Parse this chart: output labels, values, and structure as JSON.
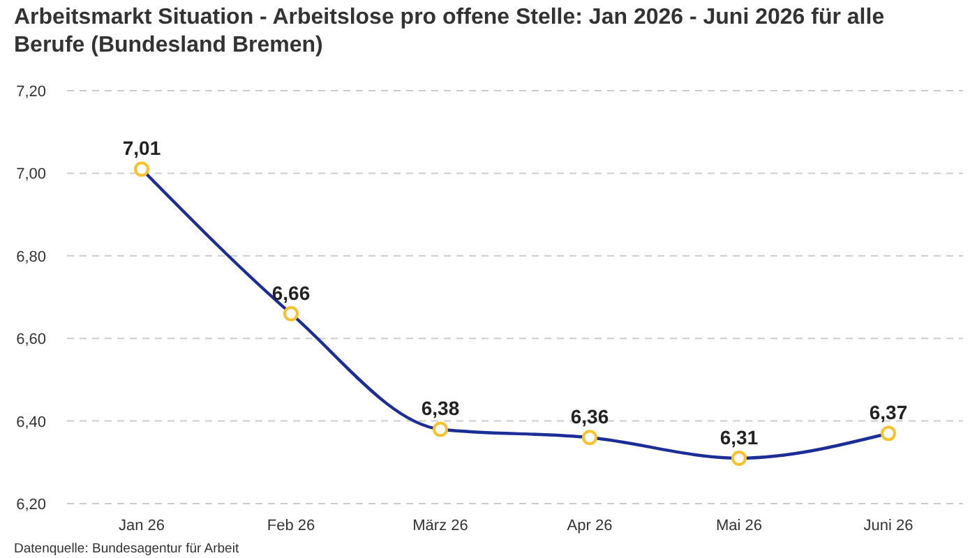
{
  "chart_data": {
    "type": "line",
    "title": "Arbeitsmarkt Situation - Arbeitslose pro offene Stelle: Jan 2026 - Juni 2026 für alle Berufe (Bundesland Bremen)",
    "categories": [
      "Jan 26",
      "Feb 26",
      "März 26",
      "Apr 26",
      "Mai 26",
      "Juni 26"
    ],
    "series": [
      {
        "color": "#1c2e96",
        "values": [
          7.01,
          6.66,
          6.38,
          6.36,
          6.31,
          6.37
        ],
        "value_labels": [
          "7,01",
          "6,66",
          "6,38",
          "6,36",
          "6,31",
          "6,37"
        ]
      }
    ],
    "ylim": [
      6.2,
      7.2
    ],
    "yticks": [
      {
        "value": 6.2,
        "label": "6,20"
      },
      {
        "value": 6.4,
        "label": "6,40"
      },
      {
        "value": 6.6,
        "label": "6,60"
      },
      {
        "value": 6.8,
        "label": "6,80"
      },
      {
        "value": 7.0,
        "label": "7,00"
      },
      {
        "value": 7.2,
        "label": "7,20"
      }
    ],
    "grid": "y",
    "marker": "circle",
    "line_style": "solid",
    "annotations": [
      "Datenquelle: Bundesagentur für Arbeit"
    ]
  }
}
